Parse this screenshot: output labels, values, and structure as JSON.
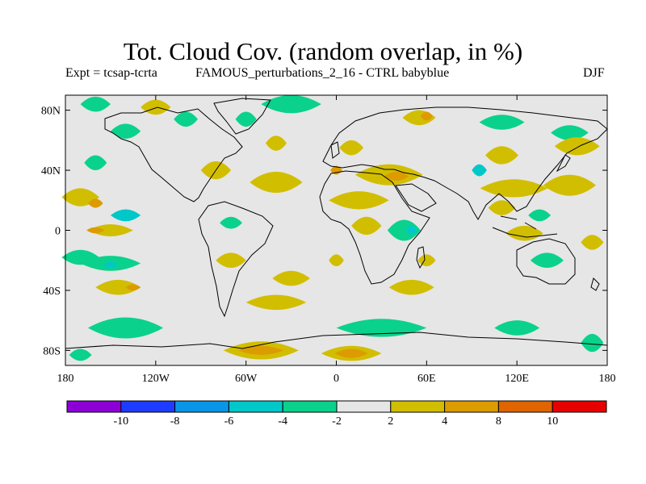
{
  "header": {
    "title": "Tot. Cloud Cov. (random overlap, in %)",
    "experiment": "Expt = tcsap-tcrta",
    "run": "FAMOUS_perturbations_2_16 - CTRL babyblue",
    "season": "DJF"
  },
  "map": {
    "lat_range": [
      -90,
      90
    ],
    "lon_range": [
      -180,
      180
    ],
    "lat_ticks": [
      {
        "value": 80,
        "label": "80N"
      },
      {
        "value": 40,
        "label": "40N"
      },
      {
        "value": 0,
        "label": "0"
      },
      {
        "value": -40,
        "label": "40S"
      },
      {
        "value": -80,
        "label": "80S"
      }
    ],
    "lon_ticks": [
      {
        "value": -180,
        "label": "180"
      },
      {
        "value": -120,
        "label": "120W"
      },
      {
        "value": -60,
        "label": "60W"
      },
      {
        "value": 0,
        "label": "0"
      },
      {
        "value": 60,
        "label": "60E"
      },
      {
        "value": 120,
        "label": "120E"
      },
      {
        "value": 180,
        "label": "180"
      }
    ],
    "background_color": "#e6e6e6",
    "anomalies": [
      {
        "lon": -30,
        "lat": 84,
        "w": 40,
        "h": 6,
        "class": "neg_2_4"
      },
      {
        "lon": -160,
        "lat": 84,
        "w": 20,
        "h": 5,
        "class": "neg_2_4"
      },
      {
        "lon": -120,
        "lat": 82,
        "w": 20,
        "h": 5,
        "class": "pos_2_4"
      },
      {
        "lon": -100,
        "lat": 74,
        "w": 16,
        "h": 5,
        "class": "neg_2_4"
      },
      {
        "lon": -60,
        "lat": 74,
        "w": 14,
        "h": 5,
        "class": "neg_2_4"
      },
      {
        "lon": -140,
        "lat": 66,
        "w": 20,
        "h": 5,
        "class": "neg_2_4"
      },
      {
        "lon": -40,
        "lat": 58,
        "w": 14,
        "h": 5,
        "class": "pos_2_4"
      },
      {
        "lon": 10,
        "lat": 55,
        "w": 16,
        "h": 5,
        "class": "pos_2_4"
      },
      {
        "lon": 55,
        "lat": 75,
        "w": 22,
        "h": 5,
        "class": "pos_2_4"
      },
      {
        "lon": 60,
        "lat": 76,
        "w": 8,
        "h": 3,
        "class": "pos_4_8"
      },
      {
        "lon": 110,
        "lat": 72,
        "w": 30,
        "h": 5,
        "class": "neg_2_4"
      },
      {
        "lon": 155,
        "lat": 65,
        "w": 25,
        "h": 5,
        "class": "neg_2_4"
      },
      {
        "lon": 160,
        "lat": 56,
        "w": 30,
        "h": 6,
        "class": "pos_2_4"
      },
      {
        "lon": 110,
        "lat": 50,
        "w": 22,
        "h": 6,
        "class": "pos_2_4"
      },
      {
        "lon": -160,
        "lat": 45,
        "w": 15,
        "h": 5,
        "class": "neg_2_4"
      },
      {
        "lon": -80,
        "lat": 40,
        "w": 20,
        "h": 6,
        "class": "pos_2_4"
      },
      {
        "lon": -40,
        "lat": 32,
        "w": 35,
        "h": 7,
        "class": "pos_2_4"
      },
      {
        "lon": 35,
        "lat": 37,
        "w": 45,
        "h": 7,
        "class": "pos_2_4"
      },
      {
        "lon": 40,
        "lat": 36,
        "w": 16,
        "h": 3,
        "class": "pos_4_8"
      },
      {
        "lon": 0,
        "lat": 40,
        "w": 8,
        "h": 3,
        "class": "pos_4_8"
      },
      {
        "lon": 95,
        "lat": 40,
        "w": 10,
        "h": 4,
        "class": "neg_4_6"
      },
      {
        "lon": 118,
        "lat": 28,
        "w": 45,
        "h": 6,
        "class": "pos_2_4"
      },
      {
        "lon": 155,
        "lat": 30,
        "w": 35,
        "h": 7,
        "class": "pos_2_4"
      },
      {
        "lon": 15,
        "lat": 20,
        "w": 40,
        "h": 6,
        "class": "pos_2_4"
      },
      {
        "lon": 110,
        "lat": 15,
        "w": 18,
        "h": 5,
        "class": "pos_2_4"
      },
      {
        "lon": 135,
        "lat": 10,
        "w": 15,
        "h": 4,
        "class": "neg_2_4"
      },
      {
        "lon": -170,
        "lat": 22,
        "w": 25,
        "h": 6,
        "class": "pos_2_4"
      },
      {
        "lon": -160,
        "lat": 18,
        "w": 10,
        "h": 3,
        "class": "pos_4_8"
      },
      {
        "lon": -140,
        "lat": 10,
        "w": 20,
        "h": 4,
        "class": "neg_4_6"
      },
      {
        "lon": -150,
        "lat": 0,
        "w": 30,
        "h": 4,
        "class": "pos_2_4"
      },
      {
        "lon": -160,
        "lat": 0,
        "w": 12,
        "h": 2,
        "class": "pos_4_8"
      },
      {
        "lon": -70,
        "lat": 5,
        "w": 15,
        "h": 4,
        "class": "neg_2_4"
      },
      {
        "lon": 20,
        "lat": 3,
        "w": 20,
        "h": 6,
        "class": "pos_2_4"
      },
      {
        "lon": 45,
        "lat": 0,
        "w": 22,
        "h": 7,
        "class": "neg_2_4"
      },
      {
        "lon": 50,
        "lat": 0,
        "w": 8,
        "h": 3,
        "class": "neg_4_6"
      },
      {
        "lon": 125,
        "lat": -2,
        "w": 25,
        "h": 5,
        "class": "pos_2_4"
      },
      {
        "lon": 170,
        "lat": -8,
        "w": 15,
        "h": 5,
        "class": "pos_2_4"
      },
      {
        "lon": -170,
        "lat": -18,
        "w": 25,
        "h": 5,
        "class": "neg_2_4"
      },
      {
        "lon": -150,
        "lat": -22,
        "w": 40,
        "h": 5,
        "class": "neg_2_4"
      },
      {
        "lon": -150,
        "lat": -23,
        "w": 10,
        "h": 2,
        "class": "neg_4_6"
      },
      {
        "lon": -70,
        "lat": -20,
        "w": 20,
        "h": 5,
        "class": "pos_2_4"
      },
      {
        "lon": -30,
        "lat": -32,
        "w": 25,
        "h": 5,
        "class": "pos_2_4"
      },
      {
        "lon": 0,
        "lat": -20,
        "w": 10,
        "h": 4,
        "class": "pos_2_4"
      },
      {
        "lon": 60,
        "lat": -20,
        "w": 12,
        "h": 4,
        "class": "pos_2_4"
      },
      {
        "lon": 140,
        "lat": -20,
        "w": 22,
        "h": 5,
        "class": "neg_2_4"
      },
      {
        "lon": -145,
        "lat": -38,
        "w": 30,
        "h": 5,
        "class": "pos_2_4"
      },
      {
        "lon": -135,
        "lat": -38,
        "w": 10,
        "h": 2,
        "class": "pos_4_8"
      },
      {
        "lon": -40,
        "lat": -48,
        "w": 40,
        "h": 5,
        "class": "pos_2_4"
      },
      {
        "lon": 50,
        "lat": -38,
        "w": 30,
        "h": 5,
        "class": "pos_2_4"
      },
      {
        "lon": -140,
        "lat": -65,
        "w": 50,
        "h": 7,
        "class": "neg_2_4"
      },
      {
        "lon": 30,
        "lat": -65,
        "w": 60,
        "h": 6,
        "class": "neg_2_4"
      },
      {
        "lon": 120,
        "lat": -65,
        "w": 30,
        "h": 5,
        "class": "neg_2_4"
      },
      {
        "lon": 170,
        "lat": -75,
        "w": 15,
        "h": 6,
        "class": "neg_2_4"
      },
      {
        "lon": -50,
        "lat": -80,
        "w": 50,
        "h": 6,
        "class": "pos_2_4"
      },
      {
        "lon": -50,
        "lat": -80,
        "w": 30,
        "h": 3,
        "class": "pos_4_8"
      },
      {
        "lon": 10,
        "lat": -82,
        "w": 40,
        "h": 5,
        "class": "pos_2_4"
      },
      {
        "lon": 10,
        "lat": -82,
        "w": 22,
        "h": 3,
        "class": "pos_4_8"
      },
      {
        "lon": -170,
        "lat": -83,
        "w": 15,
        "h": 4,
        "class": "neg_2_4"
      }
    ]
  },
  "colorbar": {
    "bins": [
      {
        "color": "#8c00d7"
      },
      {
        "color": "#1e3cff"
      },
      {
        "color": "#0a96e6"
      },
      {
        "color": "#00c8c8"
      },
      {
        "color": "#0ad28c"
      },
      {
        "color": "#e6e6e6"
      },
      {
        "color": "#d2be00"
      },
      {
        "color": "#dc9b00"
      },
      {
        "color": "#e06400"
      },
      {
        "color": "#e60000"
      }
    ],
    "labels": [
      "-10",
      "-8",
      "-6",
      "-4",
      "-2",
      "2",
      "4",
      "8",
      "10"
    ]
  },
  "classes": {
    "neg_4_6": "#00c8c8",
    "neg_2_4": "#0ad28c",
    "pos_2_4": "#d2be00",
    "pos_4_8": "#dc9b00"
  }
}
